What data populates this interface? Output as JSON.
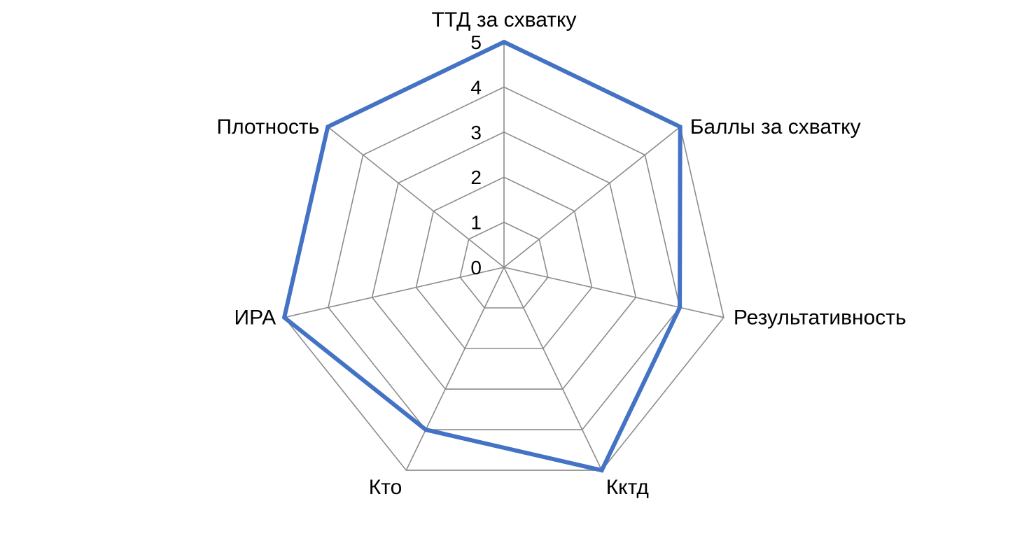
{
  "chart_data": {
    "type": "radar",
    "title": "",
    "axes": [
      "ТТД за схватку",
      "Баллы за схватку",
      "Результативность",
      "Кктд",
      "Кто",
      "ИРА",
      "Плотность"
    ],
    "series": [
      {
        "values": [
          5,
          5,
          4,
          5,
          4,
          5,
          5
        ],
        "color": "#4472C4"
      }
    ],
    "rlim": [
      0,
      5
    ],
    "ticks": [
      "0",
      "1",
      "2",
      "3",
      "4",
      "5"
    ],
    "grid": true,
    "grid_color": "#8c8c8c",
    "legend": "none"
  }
}
